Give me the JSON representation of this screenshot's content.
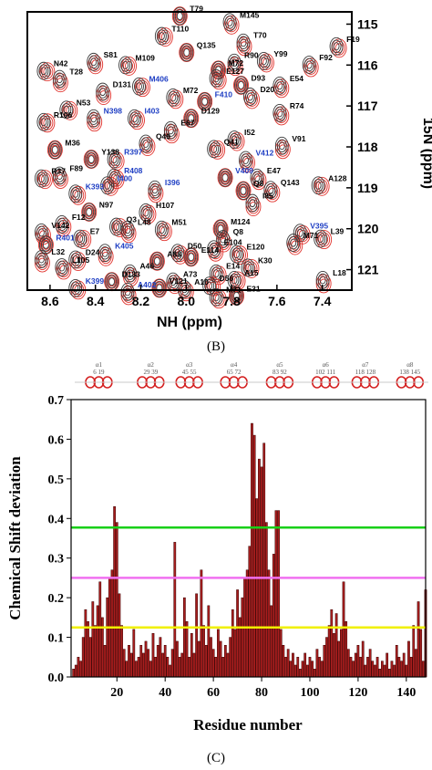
{
  "colors": {
    "apo": "#3a3a3a",
    "complex": "#e0302a",
    "blue_label": "#1f3fc4",
    "bar": "#a81e1e",
    "bar_edge": "#3a0000",
    "line_high": "#18d018",
    "line_mid": "#f070f0",
    "line_low": "#f0f000"
  },
  "panel_b": "(B)",
  "panel_c": "(C)",
  "chart_data": [
    {
      "type": "scatter",
      "xlabel": "NH (ppm)",
      "ylabel": "15N (ppm)",
      "xlim": [
        8.7,
        7.27
      ],
      "ylim": [
        121.5,
        114.7
      ],
      "xticks": [
        "8.6",
        "8.4",
        "8.2",
        "8.0",
        "7.8",
        "7.6",
        "7.4"
      ],
      "yticks": [
        "115",
        "116",
        "117",
        "118",
        "119",
        "120",
        "121"
      ],
      "peak_labels": [
        {
          "text": "T79",
          "x": 8.02,
          "y": 114.78,
          "blue": false
        },
        {
          "text": "M145",
          "x": 7.8,
          "y": 114.93,
          "blue": false
        },
        {
          "text": "T110",
          "x": 8.1,
          "y": 115.27,
          "blue": false
        },
        {
          "text": "T70",
          "x": 7.74,
          "y": 115.43,
          "blue": false
        },
        {
          "text": "F19",
          "x": 7.33,
          "y": 115.52,
          "blue": false
        },
        {
          "text": "Q135",
          "x": 7.99,
          "y": 115.67,
          "blue": false
        },
        {
          "text": "S81",
          "x": 8.4,
          "y": 115.9,
          "blue": false
        },
        {
          "text": "M109",
          "x": 8.26,
          "y": 115.98,
          "blue": false
        },
        {
          "text": "R90",
          "x": 7.78,
          "y": 115.92,
          "blue": false
        },
        {
          "text": "Y99",
          "x": 7.65,
          "y": 115.88,
          "blue": false
        },
        {
          "text": "M72",
          "x": 7.85,
          "y": 116.1,
          "blue": false
        },
        {
          "text": "F92",
          "x": 7.45,
          "y": 115.97,
          "blue": false
        },
        {
          "text": "N42",
          "x": 8.62,
          "y": 116.12,
          "blue": false
        },
        {
          "text": "T28",
          "x": 8.55,
          "y": 116.32,
          "blue": false
        },
        {
          "text": "E127",
          "x": 7.86,
          "y": 116.3,
          "blue": false
        },
        {
          "text": "D93",
          "x": 7.75,
          "y": 116.47,
          "blue": false
        },
        {
          "text": "E54",
          "x": 7.58,
          "y": 116.48,
          "blue": false
        },
        {
          "text": "M406",
          "x": 8.2,
          "y": 116.5,
          "blue": true
        },
        {
          "text": "D131",
          "x": 8.36,
          "y": 116.63,
          "blue": false
        },
        {
          "text": "M72",
          "x": 8.05,
          "y": 116.77,
          "blue": false
        },
        {
          "text": "F410",
          "x": 7.91,
          "y": 116.87,
          "blue": true
        },
        {
          "text": "D20",
          "x": 7.71,
          "y": 116.75,
          "blue": false
        },
        {
          "text": "N53",
          "x": 8.52,
          "y": 117.07,
          "blue": false
        },
        {
          "text": "N398",
          "x": 8.4,
          "y": 117.28,
          "blue": true
        },
        {
          "text": "I403",
          "x": 8.22,
          "y": 117.28,
          "blue": true
        },
        {
          "text": "D129",
          "x": 7.97,
          "y": 117.28,
          "blue": false
        },
        {
          "text": "R74",
          "x": 7.58,
          "y": 117.15,
          "blue": false
        },
        {
          "text": "R106",
          "x": 8.62,
          "y": 117.37,
          "blue": false
        },
        {
          "text": "E67",
          "x": 8.06,
          "y": 117.57,
          "blue": false
        },
        {
          "text": "I52",
          "x": 7.78,
          "y": 117.8,
          "blue": false
        },
        {
          "text": "M36",
          "x": 8.57,
          "y": 118.05,
          "blue": false
        },
        {
          "text": "Q49",
          "x": 8.17,
          "y": 117.9,
          "blue": false
        },
        {
          "text": "Q41",
          "x": 7.87,
          "y": 118.03,
          "blue": false
        },
        {
          "text": "V91",
          "x": 7.57,
          "y": 117.95,
          "blue": false
        },
        {
          "text": "R397",
          "x": 8.31,
          "y": 118.28,
          "blue": true
        },
        {
          "text": "Y138",
          "x": 8.41,
          "y": 118.28,
          "blue": false
        },
        {
          "text": "V412",
          "x": 7.73,
          "y": 118.3,
          "blue": true
        },
        {
          "text": "R37",
          "x": 8.63,
          "y": 118.75,
          "blue": false
        },
        {
          "text": "F89",
          "x": 8.55,
          "y": 118.68,
          "blue": false
        },
        {
          "text": "R408",
          "x": 8.31,
          "y": 118.73,
          "blue": true
        },
        {
          "text": "V409",
          "x": 7.82,
          "y": 118.73,
          "blue": true
        },
        {
          "text": "E47",
          "x": 7.68,
          "y": 118.73,
          "blue": false
        },
        {
          "text": "I400",
          "x": 8.34,
          "y": 118.92,
          "blue": true
        },
        {
          "text": "I396",
          "x": 8.13,
          "y": 119.02,
          "blue": true
        },
        {
          "text": "K393",
          "x": 8.48,
          "y": 119.12,
          "blue": true
        },
        {
          "text": "Q8",
          "x": 7.74,
          "y": 119.05,
          "blue": false
        },
        {
          "text": "Q143",
          "x": 7.62,
          "y": 119.03,
          "blue": false
        },
        {
          "text": "A128",
          "x": 7.41,
          "y": 118.92,
          "blue": false
        },
        {
          "text": "I85",
          "x": 7.7,
          "y": 119.35,
          "blue": false
        },
        {
          "text": "H107",
          "x": 8.17,
          "y": 119.58,
          "blue": false
        },
        {
          "text": "N97",
          "x": 8.42,
          "y": 119.57,
          "blue": false
        },
        {
          "text": "F12",
          "x": 8.54,
          "y": 119.87,
          "blue": false
        },
        {
          "text": "Q3",
          "x": 8.3,
          "y": 119.93,
          "blue": false
        },
        {
          "text": "L48",
          "x": 8.25,
          "y": 120.0,
          "blue": false
        },
        {
          "text": "M51",
          "x": 8.1,
          "y": 120.0,
          "blue": false
        },
        {
          "text": "M124",
          "x": 7.84,
          "y": 119.98,
          "blue": false
        },
        {
          "text": "V142",
          "x": 8.63,
          "y": 120.07,
          "blue": false
        },
        {
          "text": "E7",
          "x": 8.46,
          "y": 120.22,
          "blue": false
        },
        {
          "text": "Q8",
          "x": 7.83,
          "y": 120.23,
          "blue": false
        },
        {
          "text": "V395",
          "x": 7.49,
          "y": 120.08,
          "blue": true
        },
        {
          "text": "R401",
          "x": 8.61,
          "y": 120.37,
          "blue": true
        },
        {
          "text": "M71",
          "x": 7.52,
          "y": 120.32,
          "blue": false
        },
        {
          "text": "L39",
          "x": 7.4,
          "y": 120.22,
          "blue": false
        },
        {
          "text": "K405",
          "x": 8.35,
          "y": 120.57,
          "blue": true
        },
        {
          "text": "D50",
          "x": 8.03,
          "y": 120.57,
          "blue": false
        },
        {
          "text": "E114",
          "x": 7.97,
          "y": 120.67,
          "blue": false
        },
        {
          "text": "E104",
          "x": 7.87,
          "y": 120.48,
          "blue": false
        },
        {
          "text": "E120",
          "x": 7.77,
          "y": 120.6,
          "blue": false
        },
        {
          "text": "L32",
          "x": 8.63,
          "y": 120.72,
          "blue": false
        },
        {
          "text": "D24",
          "x": 8.48,
          "y": 120.73,
          "blue": false
        },
        {
          "text": "A88",
          "x": 8.12,
          "y": 120.77,
          "blue": false
        },
        {
          "text": "L105",
          "x": 8.54,
          "y": 120.92,
          "blue": false
        },
        {
          "text": "K30",
          "x": 7.72,
          "y": 120.93,
          "blue": false
        },
        {
          "text": "A46",
          "x": 8.24,
          "y": 121.07,
          "blue": false
        },
        {
          "text": "E14",
          "x": 7.86,
          "y": 121.07,
          "blue": false
        },
        {
          "text": "D133",
          "x": 8.32,
          "y": 121.27,
          "blue": false
        },
        {
          "text": "A73",
          "x": 8.05,
          "y": 121.27,
          "blue": false
        },
        {
          "text": "A15",
          "x": 7.78,
          "y": 121.23,
          "blue": false
        },
        {
          "text": "L18",
          "x": 7.39,
          "y": 121.23,
          "blue": false
        },
        {
          "text": "K399",
          "x": 8.48,
          "y": 121.43,
          "blue": true
        },
        {
          "text": "V121",
          "x": 8.11,
          "y": 121.43,
          "blue": false
        },
        {
          "text": "A10",
          "x": 8.0,
          "y": 121.45,
          "blue": false
        },
        {
          "text": "D56",
          "x": 7.89,
          "y": 121.37,
          "blue": false
        },
        {
          "text": "A402",
          "x": 8.25,
          "y": 121.52,
          "blue": true
        },
        {
          "text": "M71",
          "x": 7.86,
          "y": 121.65,
          "blue": false
        },
        {
          "text": "E31",
          "x": 7.77,
          "y": 121.62,
          "blue": false
        }
      ]
    },
    {
      "type": "bar",
      "xlabel": "Residue number",
      "ylabel": "Chemical Shift deviation",
      "xlim": [
        1,
        148
      ],
      "ylim": [
        0,
        0.7
      ],
      "xticks": [
        20,
        40,
        60,
        80,
        100,
        120,
        140
      ],
      "yticks": [
        0.0,
        0.1,
        0.2,
        0.3,
        0.4,
        0.5,
        0.6,
        0.7
      ],
      "thresholds": [
        {
          "value": 0.377,
          "color": "#18d018"
        },
        {
          "value": 0.25,
          "color": "#f070f0"
        },
        {
          "value": 0.125,
          "color": "#f0f000"
        }
      ],
      "helices": [
        {
          "name": "α1",
          "range": "6 19",
          "start": 6,
          "end": 19
        },
        {
          "name": "α2",
          "range": "29 39",
          "start": 29,
          "end": 39
        },
        {
          "name": "α3",
          "range": "45 55",
          "start": 45,
          "end": 55
        },
        {
          "name": "α4",
          "range": "65 72",
          "start": 65,
          "end": 72
        },
        {
          "name": "α5",
          "range": "83 92",
          "start": 83,
          "end": 92
        },
        {
          "name": "α6",
          "range": "102 111",
          "start": 102,
          "end": 111
        },
        {
          "name": "α7",
          "range": "118 128",
          "start": 118,
          "end": 128
        },
        {
          "name": "α8",
          "range": "138 145",
          "start": 138,
          "end": 145
        }
      ],
      "x": [
        2,
        3,
        4,
        5,
        6,
        7,
        8,
        9,
        10,
        11,
        12,
        13,
        14,
        15,
        16,
        17,
        18,
        19,
        20,
        21,
        22,
        23,
        24,
        25,
        26,
        27,
        28,
        29,
        30,
        31,
        32,
        33,
        34,
        35,
        36,
        37,
        38,
        39,
        40,
        41,
        42,
        43,
        44,
        45,
        46,
        47,
        48,
        49,
        50,
        51,
        52,
        53,
        54,
        55,
        56,
        57,
        58,
        59,
        60,
        61,
        62,
        63,
        64,
        65,
        66,
        67,
        68,
        69,
        70,
        71,
        72,
        73,
        74,
        75,
        76,
        77,
        78,
        79,
        80,
        81,
        82,
        83,
        84,
        85,
        86,
        87,
        88,
        89,
        90,
        91,
        92,
        93,
        94,
        95,
        96,
        97,
        98,
        99,
        100,
        101,
        102,
        103,
        104,
        105,
        106,
        107,
        108,
        109,
        110,
        111,
        112,
        113,
        114,
        115,
        116,
        117,
        118,
        119,
        120,
        121,
        122,
        123,
        124,
        125,
        126,
        127,
        128,
        129,
        130,
        131,
        132,
        133,
        134,
        135,
        136,
        137,
        138,
        139,
        140,
        141,
        142,
        143,
        144,
        145,
        146,
        147,
        148
      ],
      "values": [
        0.02,
        0.03,
        0.05,
        0.04,
        0.1,
        0.17,
        0.14,
        0.1,
        0.19,
        0.13,
        0.18,
        0.24,
        0.15,
        0.08,
        0.2,
        0.25,
        0.27,
        0.43,
        0.39,
        0.21,
        0.13,
        0.07,
        0.04,
        0.08,
        0.06,
        0.12,
        0.04,
        0.05,
        0.08,
        0.06,
        0.09,
        0.07,
        0.04,
        0.11,
        0.05,
        0.08,
        0.1,
        0.06,
        0.08,
        0.05,
        0.03,
        0.07,
        0.34,
        0.09,
        0.05,
        0.06,
        0.2,
        0.14,
        0.05,
        0.11,
        0.06,
        0.21,
        0.09,
        0.27,
        0.13,
        0.08,
        0.18,
        0.1,
        0.07,
        0.05,
        0.12,
        0.09,
        0.05,
        0.08,
        0.06,
        0.1,
        0.17,
        0.12,
        0.22,
        0.15,
        0.2,
        0.25,
        0.27,
        0.33,
        0.64,
        0.61,
        0.45,
        0.55,
        0.53,
        0.59,
        0.39,
        0.27,
        0.18,
        0.31,
        0.42,
        0.42,
        0.12,
        0.08,
        0.05,
        0.07,
        0.04,
        0.06,
        0.03,
        0.05,
        0.02,
        0.04,
        0.06,
        0.03,
        0.05,
        0.04,
        0.02,
        0.07,
        0.05,
        0.04,
        0.08,
        0.1,
        0.13,
        0.17,
        0.11,
        0.16,
        0.09,
        0.12,
        0.24,
        0.14,
        0.07,
        0.05,
        0.04,
        0.06,
        0.08,
        0.05,
        0.09,
        0.03,
        0.05,
        0.07,
        0.04,
        0.03,
        0.05,
        0.02,
        0.04,
        0.03,
        0.06,
        0.02,
        0.04,
        0.03,
        0.08,
        0.05,
        0.04,
        0.06,
        0.03,
        0.09,
        0.05,
        0.13,
        0.07,
        0.19,
        0.12,
        0.04,
        0.22
      ]
    }
  ]
}
